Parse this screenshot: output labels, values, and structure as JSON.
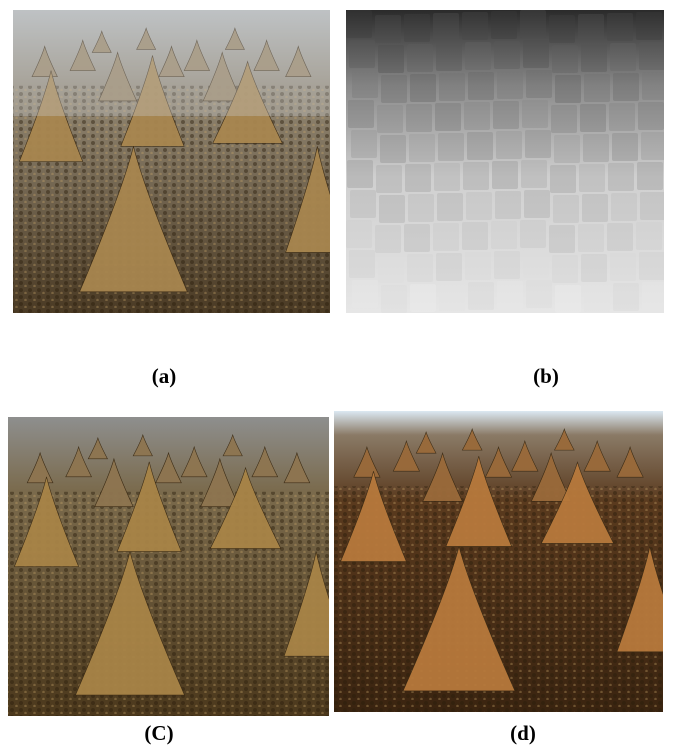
{
  "captions": [
    "(a)",
    "(b)",
    "(C)",
    "(d)"
  ]
}
